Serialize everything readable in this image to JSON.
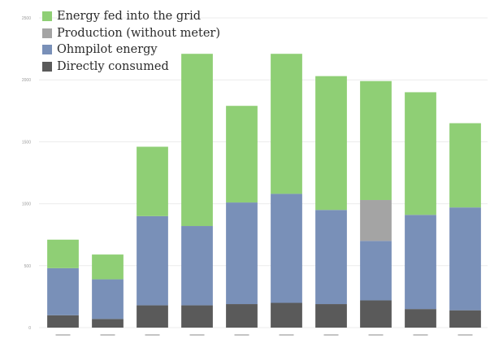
{
  "colors": {
    "grid_feed_in": "#8fcf75",
    "production_no_meter": "#a4a4a4",
    "ohmpilot": "#7990b8",
    "direct": "#5a5a5a",
    "gridline": "#ececec",
    "axis_text": "#9a9a9a"
  },
  "chart_data": {
    "type": "bar",
    "stacked": true,
    "title": "",
    "xlabel": "",
    "ylabel": "",
    "ylim": [
      0,
      2500
    ],
    "y_ticks": [
      0,
      500,
      1000,
      1500,
      2000,
      2500
    ],
    "y_tick_labels": [
      "0",
      "500",
      "1000",
      "1500",
      "2000",
      "2500"
    ],
    "grid": true,
    "legend_position": "top-left",
    "categories": [
      "",
      "",
      "",
      "",
      "",
      "",
      "",
      "",
      "",
      ""
    ],
    "series": [
      {
        "name": "Directly consumed",
        "color_key": "direct",
        "values": [
          100,
          70,
          180,
          180,
          190,
          200,
          190,
          220,
          150,
          140
        ]
      },
      {
        "name": "Ohmpilot energy",
        "color_key": "ohmpilot",
        "values": [
          380,
          320,
          720,
          640,
          820,
          880,
          760,
          480,
          760,
          830
        ]
      },
      {
        "name": "Production (without meter)",
        "color_key": "production_no_meter",
        "values": [
          0,
          0,
          0,
          0,
          0,
          0,
          0,
          330,
          0,
          0
        ]
      },
      {
        "name": "Energy fed into the grid",
        "color_key": "grid_feed_in",
        "values": [
          230,
          200,
          560,
          1390,
          780,
          1130,
          1080,
          960,
          990,
          680
        ]
      }
    ]
  },
  "legend": {
    "items": [
      {
        "label": "Energy fed into the grid",
        "color_key": "grid_feed_in"
      },
      {
        "label": "Production (without meter)",
        "color_key": "production_no_meter"
      },
      {
        "label": "Ohmpilot energy",
        "color_key": "ohmpilot"
      },
      {
        "label": "Directly consumed",
        "color_key": "direct"
      }
    ]
  }
}
